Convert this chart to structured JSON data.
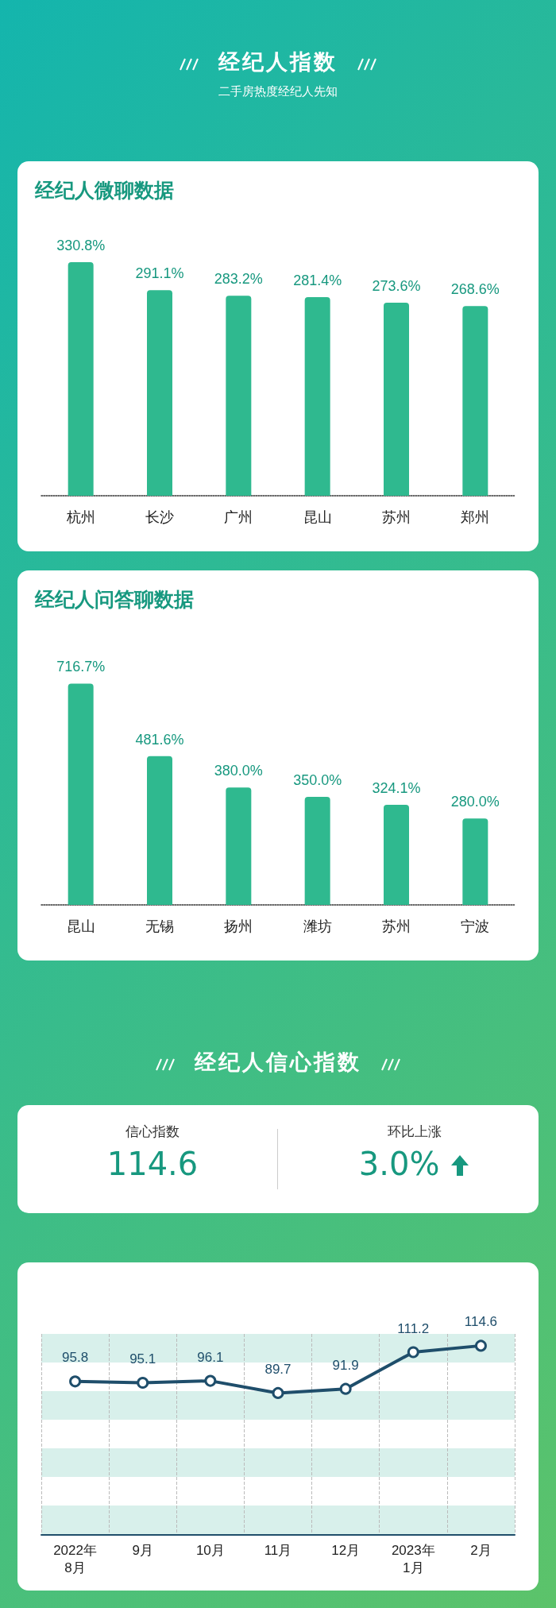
{
  "chart_data": [
    {
      "type": "other",
      "title": "经纪人指数",
      "subtitle": "二手房热度经纪人先知"
    },
    {
      "type": "bar",
      "title": "经纪人微聊数据",
      "categories": [
        "杭州",
        "长沙",
        "广州",
        "昆山",
        "苏州",
        "郑州"
      ],
      "values": [
        330.8,
        291.1,
        283.2,
        281.4,
        273.6,
        268.6
      ],
      "value_labels": [
        "330.8%",
        "291.1%",
        "283.2%",
        "281.4%",
        "273.6%",
        "268.6%"
      ],
      "color": "#2fb98f"
    },
    {
      "type": "bar",
      "title": "经纪人问答聊数据",
      "categories": [
        "昆山",
        "无锡",
        "扬州",
        "潍坊",
        "苏州",
        "宁波"
      ],
      "values": [
        716.7,
        481.6,
        380.0,
        350.0,
        324.1,
        280.0
      ],
      "value_labels": [
        "716.7%",
        "481.6%",
        "380.0%",
        "350.0%",
        "324.1%",
        "280.0%"
      ],
      "color": "#2fb98f"
    },
    {
      "type": "other",
      "title": "经纪人信心指数",
      "annotations": [
        "信心指数",
        "114.6",
        "环比上涨",
        "3.0%"
      ]
    },
    {
      "type": "line",
      "categories": [
        "2022年\n8月",
        "9月",
        "10月",
        "11月",
        "12月",
        "2023年\n1月",
        "2月"
      ],
      "values": [
        95.8,
        95.1,
        96.1,
        89.7,
        91.9,
        111.2,
        114.6
      ],
      "color": "#1f4e6b",
      "marker": "circle",
      "data_labels": true,
      "grid": "x"
    }
  ]
}
